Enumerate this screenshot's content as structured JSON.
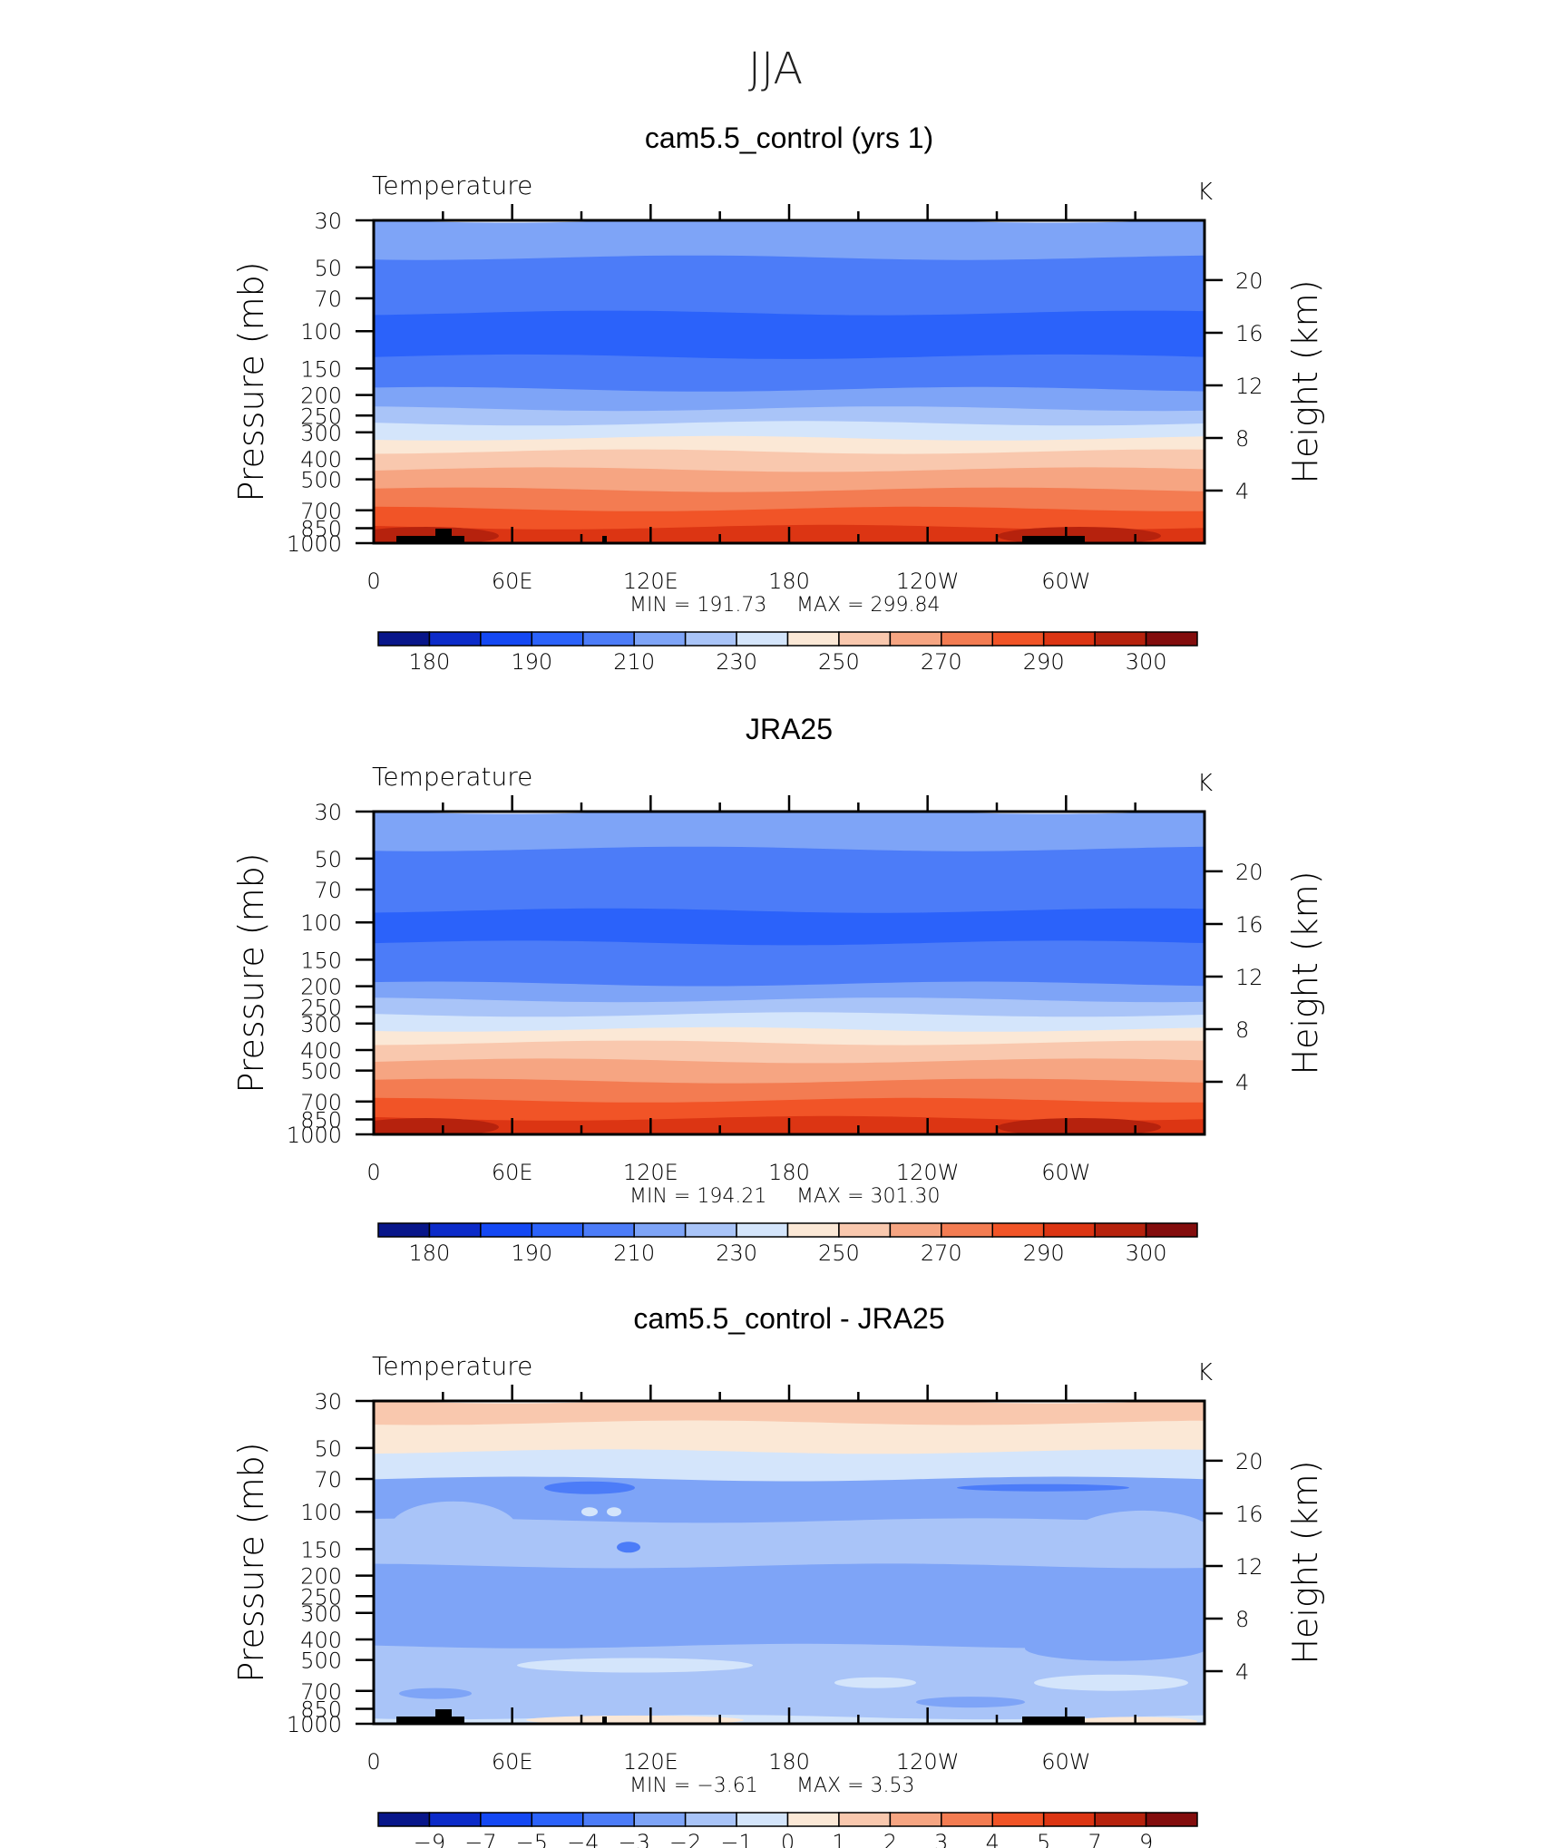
{
  "page_title": "JJA",
  "chart_data": [
    {
      "type": "heatmap",
      "title": "cam5.5_control (yrs 1)",
      "left_label": "Temperature",
      "units": "K",
      "ylabel": "Pressure (mb)",
      "ylabel_right": "Height (km)",
      "x_tick_labels": [
        "0",
        "60E",
        "120E",
        "180",
        "120W",
        "60W"
      ],
      "xlim": [
        0,
        360
      ],
      "y_tick_labels": [
        "30",
        "50",
        "70",
        "100",
        "150",
        "200",
        "250",
        "300",
        "400",
        "500",
        "700",
        "850",
        "1000"
      ],
      "y_ticks": [
        30,
        50,
        70,
        100,
        150,
        200,
        250,
        300,
        400,
        500,
        700,
        850,
        1000
      ],
      "ylim": [
        1000,
        30
      ],
      "y_right_tick_labels": [
        "4",
        "8",
        "12",
        "16",
        "20"
      ],
      "y_right_ticks": [
        4,
        8,
        12,
        16,
        20
      ],
      "min_text": "MIN  =  191.73",
      "max_text": "MAX  =  299.84",
      "colorbar_labels": [
        "180",
        "190",
        "210",
        "230",
        "250",
        "270",
        "290",
        "300"
      ],
      "colorbar_colors": [
        "#08168a",
        "#0c2bc9",
        "#1448f3",
        "#2b62fa",
        "#4c7cf8",
        "#7ea4f7",
        "#a9c4f8",
        "#d4e5fb",
        "#fbe8d6",
        "#f9c8ae",
        "#f6a582",
        "#f37c52",
        "#f15427",
        "#dc3513",
        "#b6220d",
        "#830d0d"
      ],
      "bands": [
        {
          "top": 30,
          "bottom": 45,
          "color": "#7ea4f7"
        },
        {
          "top": 45,
          "bottom": 82,
          "color": "#4c7cf8"
        },
        {
          "top": 82,
          "bottom": 132,
          "color": "#2b62fa"
        },
        {
          "top": 132,
          "bottom": 188,
          "color": "#4c7cf8"
        },
        {
          "top": 188,
          "bottom": 232,
          "color": "#7ea4f7"
        },
        {
          "top": 232,
          "bottom": 272,
          "color": "#a9c4f8"
        },
        {
          "top": 272,
          "bottom": 320,
          "color": "#d4e5fb"
        },
        {
          "top": 320,
          "bottom": 370,
          "color": "#fbe8d6"
        },
        {
          "top": 370,
          "bottom": 450,
          "color": "#f9c8ae"
        },
        {
          "top": 450,
          "bottom": 560,
          "color": "#f6a582"
        },
        {
          "top": 560,
          "bottom": 690,
          "color": "#f37c52"
        },
        {
          "top": 690,
          "bottom": 840,
          "color": "#f15427"
        },
        {
          "top": 840,
          "bottom": 1000,
          "color": "#dc3513"
        }
      ],
      "terrain": true
    },
    {
      "type": "heatmap",
      "title": "JRA25",
      "left_label": "Temperature",
      "units": "K",
      "ylabel": "Pressure (mb)",
      "ylabel_right": "Height (km)",
      "x_tick_labels": [
        "0",
        "60E",
        "120E",
        "180",
        "120W",
        "60W"
      ],
      "xlim": [
        0,
        360
      ],
      "y_tick_labels": [
        "30",
        "50",
        "70",
        "100",
        "150",
        "200",
        "250",
        "300",
        "400",
        "500",
        "700",
        "850",
        "1000"
      ],
      "y_ticks": [
        30,
        50,
        70,
        100,
        150,
        200,
        250,
        300,
        400,
        500,
        700,
        850,
        1000
      ],
      "ylim": [
        1000,
        30
      ],
      "y_right_tick_labels": [
        "4",
        "8",
        "12",
        "16",
        "20"
      ],
      "y_right_ticks": [
        4,
        8,
        12,
        16,
        20
      ],
      "min_text": "MIN  =  194.21",
      "max_text": "MAX  =  301.30",
      "colorbar_labels": [
        "180",
        "190",
        "210",
        "230",
        "250",
        "270",
        "290",
        "300"
      ],
      "colorbar_colors": [
        "#08168a",
        "#0c2bc9",
        "#1448f3",
        "#2b62fa",
        "#4c7cf8",
        "#7ea4f7",
        "#a9c4f8",
        "#d4e5fb",
        "#fbe8d6",
        "#f9c8ae",
        "#f6a582",
        "#f37c52",
        "#f15427",
        "#dc3513",
        "#b6220d",
        "#830d0d"
      ],
      "bands": [
        {
          "top": 30,
          "bottom": 45,
          "color": "#7ea4f7"
        },
        {
          "top": 45,
          "bottom": 88,
          "color": "#4c7cf8"
        },
        {
          "top": 88,
          "bottom": 125,
          "color": "#2b62fa"
        },
        {
          "top": 125,
          "bottom": 195,
          "color": "#4c7cf8"
        },
        {
          "top": 195,
          "bottom": 232,
          "color": "#7ea4f7"
        },
        {
          "top": 232,
          "bottom": 272,
          "color": "#a9c4f8"
        },
        {
          "top": 272,
          "bottom": 320,
          "color": "#d4e5fb"
        },
        {
          "top": 320,
          "bottom": 370,
          "color": "#fbe8d6"
        },
        {
          "top": 370,
          "bottom": 450,
          "color": "#f9c8ae"
        },
        {
          "top": 450,
          "bottom": 560,
          "color": "#f6a582"
        },
        {
          "top": 560,
          "bottom": 690,
          "color": "#f37c52"
        },
        {
          "top": 690,
          "bottom": 840,
          "color": "#f15427"
        },
        {
          "top": 840,
          "bottom": 1000,
          "color": "#dc3513"
        }
      ],
      "terrain": false
    },
    {
      "type": "heatmap",
      "title": "cam5.5_control - JRA25",
      "left_label": "Temperature",
      "units": "K",
      "ylabel": "Pressure (mb)",
      "ylabel_right": "Height (km)",
      "x_tick_labels": [
        "0",
        "60E",
        "120E",
        "180",
        "120W",
        "60W"
      ],
      "xlim": [
        0,
        360
      ],
      "y_tick_labels": [
        "30",
        "50",
        "70",
        "100",
        "150",
        "200",
        "250",
        "300",
        "400",
        "500",
        "700",
        "850",
        "1000"
      ],
      "y_ticks": [
        30,
        50,
        70,
        100,
        150,
        200,
        250,
        300,
        400,
        500,
        700,
        850,
        1000
      ],
      "ylim": [
        1000,
        30
      ],
      "y_right_tick_labels": [
        "4",
        "8",
        "12",
        "16",
        "20"
      ],
      "y_right_ticks": [
        4,
        8,
        12,
        16,
        20
      ],
      "min_text": "MIN  =   −3.61",
      "max_text": "MAX  =     3.53",
      "colorbar_labels": [
        "−9",
        "−7",
        "−5",
        "−4",
        "−3",
        "−2",
        "−1",
        "0",
        "1",
        "2",
        "3",
        "4",
        "5",
        "7",
        "9"
      ],
      "colorbar_colors": [
        "#08168a",
        "#0c2bc9",
        "#1448f3",
        "#2b62fa",
        "#4c7cf8",
        "#7ea4f7",
        "#a9c4f8",
        "#d4e5fb",
        "#fbe8d6",
        "#f9c8ae",
        "#f6a582",
        "#f37c52",
        "#f15427",
        "#dc3513",
        "#b6220d",
        "#830d0d"
      ],
      "bands": [
        {
          "top": 30,
          "bottom": 38,
          "color": "#f9c8ae"
        },
        {
          "top": 38,
          "bottom": 52,
          "color": "#fbe8d6"
        },
        {
          "top": 52,
          "bottom": 70,
          "color": "#d4e5fb"
        },
        {
          "top": 70,
          "bottom": 110,
          "color": "#7ea4f7"
        },
        {
          "top": 110,
          "bottom": 180,
          "color": "#a9c4f8"
        },
        {
          "top": 180,
          "bottom": 430,
          "color": "#7ea4f7"
        },
        {
          "top": 430,
          "bottom": 930,
          "color": "#a9c4f8"
        },
        {
          "top": 930,
          "bottom": 1000,
          "color": "#d4e5fb"
        }
      ],
      "terrain": true
    }
  ]
}
